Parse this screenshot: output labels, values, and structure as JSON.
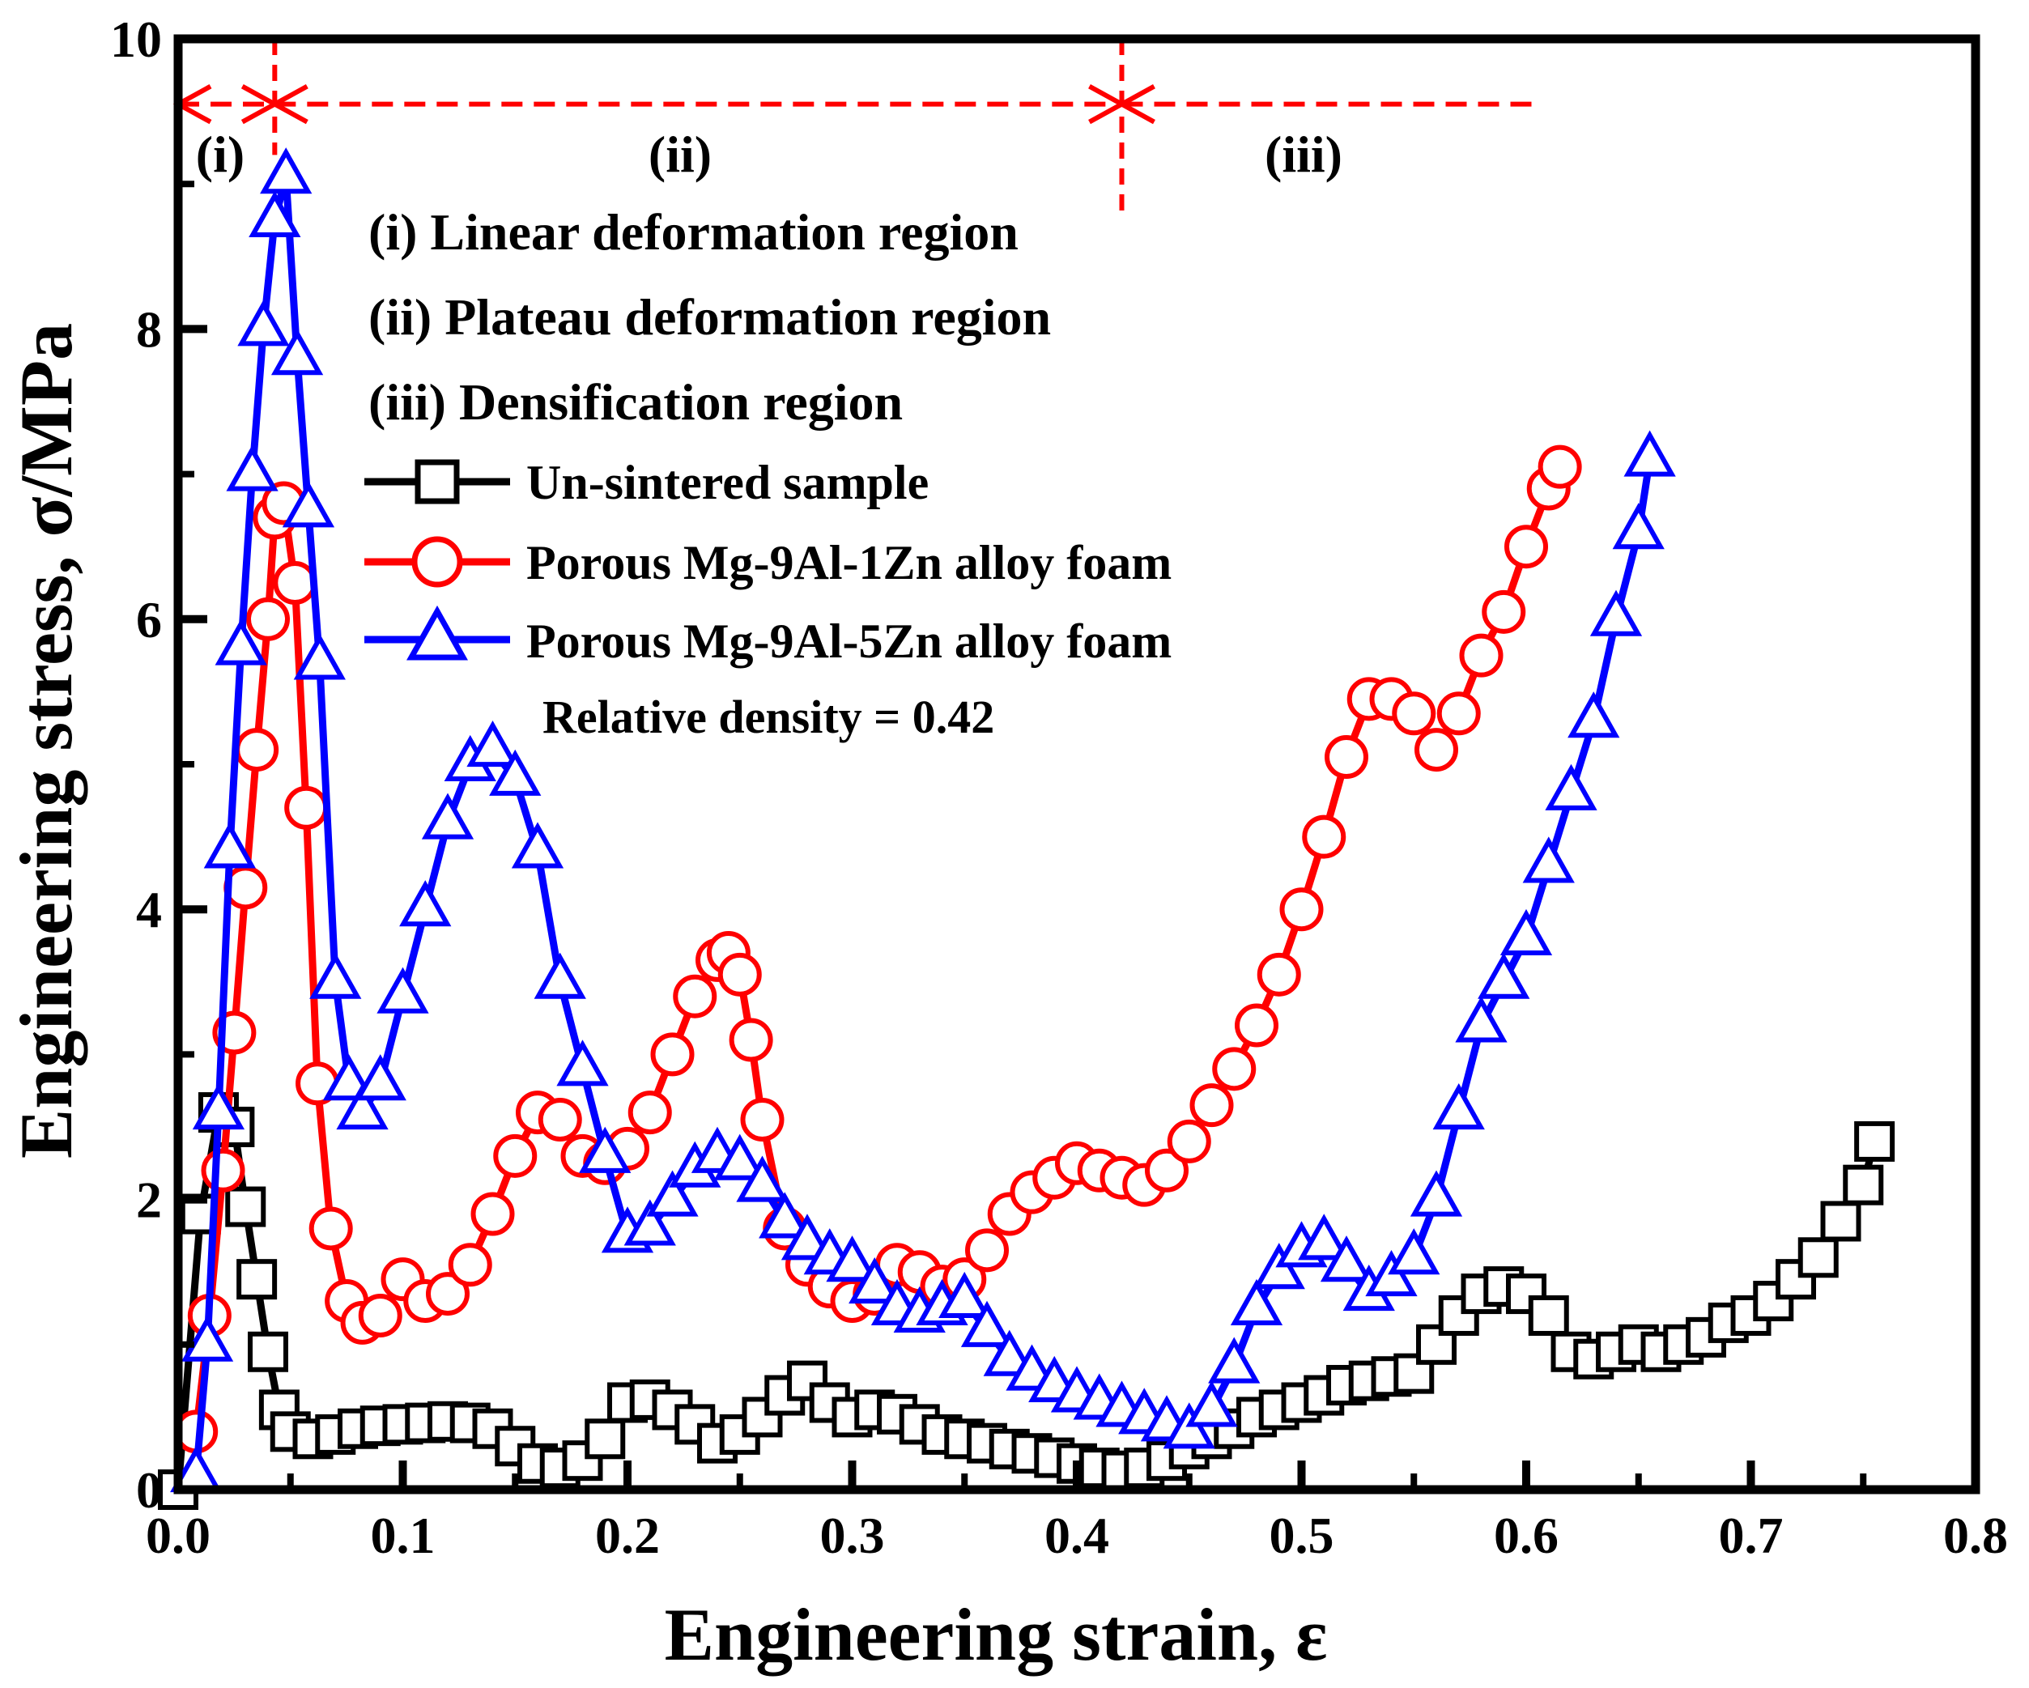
{
  "chart_data": {
    "type": "line",
    "title": "",
    "xlabel": "Engineering strain, ε",
    "ylabel": "Engineering stress, σ/MPa",
    "xlim": [
      0.0,
      0.8
    ],
    "ylim": [
      0,
      10
    ],
    "xticks": [
      "0.0",
      "0.1",
      "0.2",
      "0.3",
      "0.4",
      "0.5",
      "0.6",
      "0.7",
      "0.8"
    ],
    "yticks": [
      "0",
      "2",
      "4",
      "6",
      "8",
      "10"
    ],
    "grid": false,
    "legend_position": "upper-middle",
    "regions": [
      {
        "label": "(i)",
        "x_start": 0.0,
        "x_end": 0.043
      },
      {
        "label": "(ii)",
        "x_start": 0.043,
        "x_end": 0.42
      },
      {
        "label": "(iii)",
        "x_start": 0.42,
        "x_end": 0.605
      }
    ],
    "region_descriptions": [
      "(i) Linear deformation region",
      "(ii) Plateau deformation region",
      "(iii) Densification region"
    ],
    "annotation": "Relative density = 0.42",
    "series": [
      {
        "name": "Un-sintered sample",
        "color": "#000000",
        "marker": "square",
        "x": [
          0.0,
          0.01,
          0.018,
          0.025,
          0.03,
          0.035,
          0.04,
          0.045,
          0.05,
          0.06,
          0.07,
          0.08,
          0.09,
          0.1,
          0.11,
          0.12,
          0.13,
          0.14,
          0.15,
          0.16,
          0.17,
          0.18,
          0.19,
          0.2,
          0.21,
          0.22,
          0.23,
          0.24,
          0.25,
          0.26,
          0.27,
          0.28,
          0.29,
          0.3,
          0.31,
          0.32,
          0.33,
          0.34,
          0.35,
          0.36,
          0.37,
          0.38,
          0.39,
          0.4,
          0.41,
          0.42,
          0.43,
          0.44,
          0.45,
          0.46,
          0.47,
          0.48,
          0.49,
          0.5,
          0.51,
          0.52,
          0.53,
          0.54,
          0.55,
          0.56,
          0.57,
          0.58,
          0.59,
          0.6,
          0.61,
          0.62,
          0.63,
          0.64,
          0.65,
          0.66,
          0.67,
          0.68,
          0.69,
          0.7,
          0.71,
          0.72,
          0.73,
          0.74,
          0.75,
          0.755
        ],
        "y": [
          0.0,
          1.9,
          2.6,
          2.5,
          1.95,
          1.45,
          0.95,
          0.55,
          0.4,
          0.35,
          0.38,
          0.42,
          0.44,
          0.45,
          0.46,
          0.47,
          0.46,
          0.42,
          0.3,
          0.18,
          0.15,
          0.2,
          0.35,
          0.6,
          0.62,
          0.55,
          0.45,
          0.32,
          0.38,
          0.5,
          0.65,
          0.75,
          0.6,
          0.5,
          0.55,
          0.52,
          0.45,
          0.38,
          0.35,
          0.32,
          0.28,
          0.25,
          0.22,
          0.18,
          0.15,
          0.13,
          0.15,
          0.2,
          0.28,
          0.35,
          0.42,
          0.5,
          0.55,
          0.6,
          0.65,
          0.72,
          0.75,
          0.78,
          0.8,
          1.0,
          1.2,
          1.35,
          1.4,
          1.35,
          1.2,
          0.95,
          0.9,
          0.95,
          1.0,
          0.95,
          1.0,
          1.05,
          1.15,
          1.2,
          1.3,
          1.45,
          1.6,
          1.85,
          2.1,
          2.4
        ]
      },
      {
        "name": "Porous Mg-9Al-1Zn alloy foam",
        "color": "#ff0000",
        "marker": "circle",
        "x": [
          0.008,
          0.014,
          0.02,
          0.025,
          0.03,
          0.035,
          0.04,
          0.043,
          0.047,
          0.052,
          0.057,
          0.062,
          0.068,
          0.075,
          0.082,
          0.09,
          0.1,
          0.11,
          0.12,
          0.13,
          0.14,
          0.15,
          0.16,
          0.17,
          0.18,
          0.19,
          0.2,
          0.21,
          0.22,
          0.23,
          0.24,
          0.245,
          0.25,
          0.255,
          0.26,
          0.27,
          0.28,
          0.29,
          0.3,
          0.31,
          0.32,
          0.33,
          0.34,
          0.35,
          0.36,
          0.37,
          0.38,
          0.39,
          0.4,
          0.41,
          0.42,
          0.43,
          0.44,
          0.45,
          0.46,
          0.47,
          0.48,
          0.49,
          0.5,
          0.51,
          0.52,
          0.53,
          0.54,
          0.55,
          0.56,
          0.57,
          0.58,
          0.59,
          0.6,
          0.61,
          0.615
        ],
        "y": [
          0.4,
          1.2,
          2.2,
          3.15,
          4.15,
          5.1,
          6.0,
          6.7,
          6.8,
          6.25,
          4.7,
          2.8,
          1.8,
          1.3,
          1.15,
          1.2,
          1.45,
          1.3,
          1.35,
          1.55,
          1.9,
          2.3,
          2.6,
          2.55,
          2.3,
          2.25,
          2.35,
          2.6,
          3.0,
          3.4,
          3.65,
          3.7,
          3.55,
          3.1,
          2.55,
          1.8,
          1.55,
          1.4,
          1.3,
          1.35,
          1.55,
          1.5,
          1.4,
          1.45,
          1.65,
          1.9,
          2.05,
          2.15,
          2.25,
          2.2,
          2.15,
          2.1,
          2.2,
          2.4,
          2.65,
          2.9,
          3.2,
          3.55,
          4.0,
          4.5,
          5.05,
          5.45,
          5.45,
          5.35,
          5.1,
          5.35,
          5.75,
          6.05,
          6.5,
          6.9,
          7.05
        ]
      },
      {
        "name": "Porous Mg-9Al-5Zn alloy foam",
        "color": "#0000ff",
        "marker": "triangle",
        "x": [
          0.008,
          0.013,
          0.018,
          0.023,
          0.028,
          0.033,
          0.038,
          0.043,
          0.048,
          0.053,
          0.058,
          0.063,
          0.07,
          0.076,
          0.082,
          0.09,
          0.1,
          0.11,
          0.12,
          0.13,
          0.14,
          0.15,
          0.16,
          0.17,
          0.18,
          0.19,
          0.2,
          0.21,
          0.22,
          0.23,
          0.24,
          0.25,
          0.26,
          0.27,
          0.28,
          0.29,
          0.3,
          0.31,
          0.32,
          0.33,
          0.34,
          0.35,
          0.36,
          0.37,
          0.38,
          0.39,
          0.4,
          0.41,
          0.42,
          0.43,
          0.44,
          0.45,
          0.46,
          0.47,
          0.48,
          0.49,
          0.5,
          0.51,
          0.52,
          0.53,
          0.54,
          0.55,
          0.56,
          0.57,
          0.58,
          0.59,
          0.6,
          0.61,
          0.62,
          0.63,
          0.64,
          0.65,
          0.655
        ],
        "y": [
          0.1,
          1.0,
          2.6,
          4.4,
          5.8,
          7.0,
          8.0,
          8.75,
          9.05,
          7.8,
          6.75,
          5.7,
          3.5,
          2.8,
          2.6,
          2.8,
          3.4,
          4.0,
          4.6,
          5.0,
          5.1,
          4.9,
          4.4,
          3.5,
          2.9,
          2.3,
          1.75,
          1.8,
          2.0,
          2.2,
          2.3,
          2.25,
          2.1,
          1.85,
          1.7,
          1.6,
          1.55,
          1.4,
          1.25,
          1.2,
          1.25,
          1.3,
          1.1,
          0.9,
          0.8,
          0.72,
          0.65,
          0.6,
          0.55,
          0.5,
          0.45,
          0.4,
          0.55,
          0.85,
          1.25,
          1.5,
          1.65,
          1.7,
          1.55,
          1.35,
          1.45,
          1.6,
          2.0,
          2.6,
          3.2,
          3.5,
          3.8,
          4.3,
          4.8,
          5.3,
          6.0,
          6.6,
          7.1
        ]
      }
    ]
  }
}
